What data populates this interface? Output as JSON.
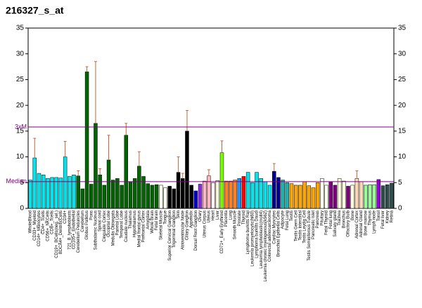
{
  "chart_data": {
    "type": "bar",
    "title": "216327_s_at",
    "categories": [
      "WholeBlood",
      "CD33+_Myeloid",
      "CD14+_Monocytes",
      "CD4+_Tcells",
      "CD56+_NKCells",
      "CD8+_Tcells",
      "CD19+_BCells(neg._sel.)",
      "BDCA4+_DentriticCells",
      "CD34+",
      "721_B_lymphoblasts",
      "CD105+_Endothelial",
      "Cerebellum Peduncles",
      "Cerebellum",
      "Globus Pallidus",
      "Pons",
      "Subthalamic Nucleus",
      "Spinal cord",
      "Cingulate Cortex",
      "Occipital Lobe",
      "Medulla Oblongata",
      "Parietal Lobe",
      "Temporal Lobe",
      "Caudate nucleus",
      "Thalamus",
      "Hypothalamus",
      "Medial frontal gyrus",
      "Prefrontal Cortex",
      "Amygdala",
      "Whole Brain",
      "Fetal brain",
      "Skeletal Muscle",
      "Tongue",
      "Superior Cervical Ganglion",
      "Trigeminal Ganglion",
      "Skin",
      "Atrioventricular Node",
      "Ciliary Ganglion",
      "Appendix",
      "Dorsal Root Ganglion",
      "Ovary",
      "Uterus Corpus",
      "Uterus",
      "Heart",
      "Liver",
      "CD71+_Early Erythroid",
      "Placenta",
      "Lung",
      "Smooth Muscle",
      "Prostate",
      "Thyroid",
      "Lymphoma burkitts Raji",
      "Leukemia promyelocytic(hl60)",
      "Lymphoma burkitts Daudi",
      "Leukemia lymphoblastic(molt4)",
      "Leukemia chronic myelogenous(k562)",
      "Colorectal adenocarcinoma",
      "Cardiac Myocytes",
      "Bronchial Epithelial Cells",
      "Adipocyte",
      "Fetal Lung",
      "Testis",
      "Testis Germ Cell",
      "Testis Interstitial",
      "Testis Leydig Cell",
      "Testis Seminiferous Tubule",
      "Pancreatic Islet",
      "Pancreas",
      "Pituitary",
      "Fetal Thyroid",
      "Fetal lung",
      "Salivary gland",
      "Trachea",
      "Bronchus",
      "Olfactory Bulb",
      "Bone",
      "Adrenal Cortex",
      "Adrenal Gland",
      "Bone marrow",
      "Thymus",
      "Lymph node",
      "Tonsil",
      "Fetal liver",
      "Kidney",
      "Retina"
    ],
    "values": [
      5.5,
      9.8,
      6.8,
      6.5,
      5.8,
      6.0,
      6.0,
      5.9,
      10.0,
      6.2,
      6.5,
      6.3,
      3.8,
      26.5,
      4.7,
      16.5,
      6.5,
      4.5,
      9.4,
      5.5,
      5.8,
      4.5,
      14.2,
      5.2,
      5.8,
      8.2,
      6.2,
      4.8,
      4.5,
      4.6,
      4.5,
      4.0,
      4.3,
      3.8,
      7.0,
      5.8,
      15.0,
      4.5,
      3.4,
      4.7,
      5.3,
      6.3,
      5.0,
      5.4,
      10.8,
      5.3,
      5.3,
      5.5,
      5.8,
      6.2,
      7.0,
      5.0,
      7.0,
      5.8,
      5.2,
      4.5,
      7.2,
      6.0,
      5.5,
      5.0,
      4.8,
      4.5,
      4.5,
      5.2,
      4.4,
      4.0,
      5.0,
      5.8,
      4.5,
      5.2,
      4.5,
      5.8,
      5.3,
      4.3,
      4.5,
      5.8,
      5.2,
      4.5,
      4.6,
      4.6,
      5.6,
      4.4,
      4.6,
      4.9
    ],
    "errors": [
      null,
      3.8,
      null,
      null,
      null,
      null,
      null,
      null,
      3.0,
      null,
      null,
      1.0,
      null,
      1.0,
      null,
      12.0,
      1.2,
      null,
      4.8,
      null,
      null,
      null,
      2.3,
      null,
      null,
      2.8,
      null,
      null,
      null,
      null,
      null,
      null,
      null,
      null,
      3.0,
      1.0,
      4.0,
      null,
      null,
      null,
      null,
      1.2,
      null,
      null,
      2.3,
      null,
      null,
      null,
      null,
      null,
      null,
      null,
      null,
      null,
      null,
      null,
      1.5,
      null,
      null,
      null,
      null,
      null,
      null,
      null,
      null,
      null,
      null,
      null,
      null,
      null,
      null,
      null,
      null,
      null,
      null,
      1.5,
      null,
      null,
      null,
      null,
      null,
      null,
      null,
      null
    ],
    "colors": [
      "#00e5ee",
      "#00e5ee",
      "#00e5ee",
      "#00e5ee",
      "#00e5ee",
      "#00e5ee",
      "#00e5ee",
      "#00e5ee",
      "#00e5ee",
      "#00e5ee",
      "#00e5ee",
      "#006400",
      "#006400",
      "#006400",
      "#006400",
      "#006400",
      "#006400",
      "#006400",
      "#006400",
      "#006400",
      "#006400",
      "#006400",
      "#006400",
      "#006400",
      "#006400",
      "#006400",
      "#006400",
      "#006400",
      "#006400",
      "#006400",
      "#fffff0",
      "#fffff0",
      "#000000",
      "#000000",
      "#000000",
      "#000000",
      "#000000",
      "#000000",
      "#0000cd",
      "#8a2be2",
      "#ffb6c1",
      "#ffb6c1",
      "#fff0f5",
      "#f5f5dc",
      "#7cfc00",
      "#ff7f24",
      "#ff7f24",
      "#ff7f24",
      "#1e90ff",
      "#ff0000",
      "#00e5ee",
      "#00e5ee",
      "#00e5ee",
      "#00e5ee",
      "#00e5ee",
      "#00e5ee",
      "#00008b",
      "#00008b",
      "#20b2aa",
      "#20b2aa",
      "#ffa500",
      "#ffa500",
      "#ffa500",
      "#ffa500",
      "#ffa500",
      "#ffa500",
      "#ffa500",
      "#fffff0",
      "#fffff0",
      "#800080",
      "#800080",
      "#ffffe0",
      "#ffffe0",
      "#800080",
      "#ffffe0",
      "#ffdab9",
      "#ffdab9",
      "#98fb98",
      "#98fb98",
      "#98fb98",
      "#9400d3",
      "#2f4f4f",
      "#2f4f4f",
      "#2f4f4f"
    ],
    "error_color": "#c8643c",
    "ylim": [
      0,
      35
    ],
    "yticks": [
      0,
      5,
      10,
      15,
      20,
      25,
      30,
      35
    ],
    "lines": [
      {
        "label": "3xM",
        "value": 15.8,
        "color": "#800080"
      },
      {
        "label": "Median",
        "value": 5.2,
        "color": "#800080"
      }
    ]
  }
}
